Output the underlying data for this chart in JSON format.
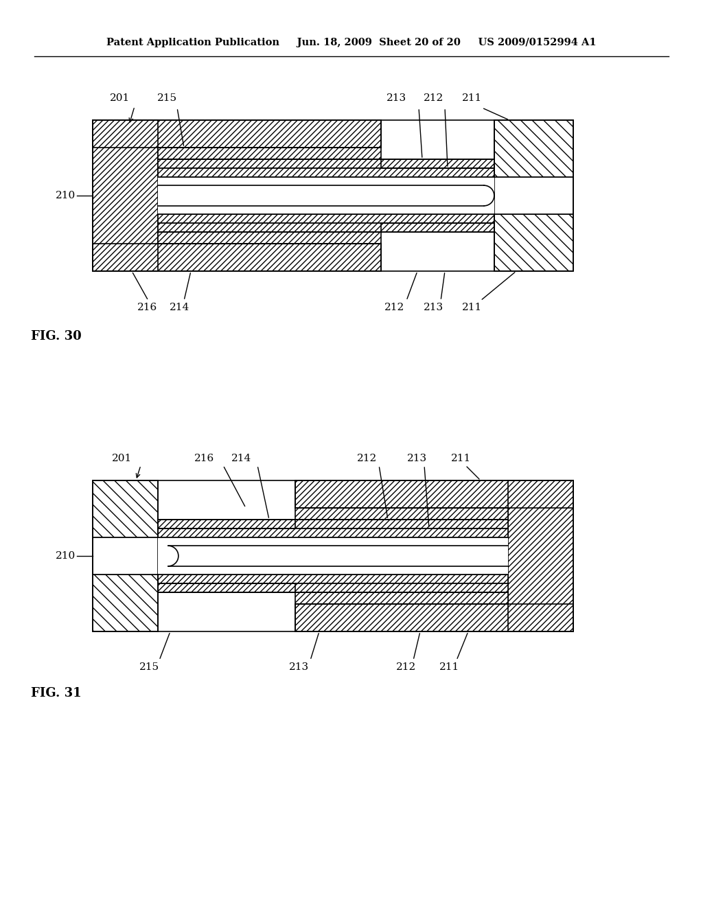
{
  "background_color": "#ffffff",
  "header_text": "Patent Application Publication     Jun. 18, 2009  Sheet 20 of 20     US 2009/0152994 A1",
  "header_fontsize": 10.5,
  "fig30_label": "FIG. 30",
  "fig31_label": "FIG. 31",
  "label_fontsize": 13,
  "ref_fontsize": 11,
  "line_color": "#000000",
  "face_color": "#ffffff"
}
